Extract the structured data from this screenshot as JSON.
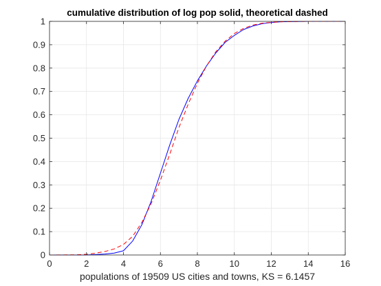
{
  "chart_data": {
    "type": "line",
    "title": "cumulative distribution of log pop solid, theoretical dashed",
    "xlabel": "populations of 19509 US cities and towns, KS = 6.1457",
    "ylabel": "",
    "xlim": [
      0,
      16
    ],
    "ylim": [
      0,
      1
    ],
    "x_ticks": [
      0,
      2,
      4,
      6,
      8,
      10,
      12,
      14,
      16
    ],
    "y_ticks": [
      0,
      0.1,
      0.2,
      0.3,
      0.4,
      0.5,
      0.6,
      0.7,
      0.8,
      0.9,
      1
    ],
    "x_tick_labels": [
      "0",
      "2",
      "4",
      "6",
      "8",
      "10",
      "12",
      "14",
      "16"
    ],
    "y_tick_labels": [
      "0",
      "0.1",
      "0.2",
      "0.3",
      "0.4",
      "0.5",
      "0.6",
      "0.7",
      "0.8",
      "0.9",
      "1"
    ],
    "grid": true,
    "series": [
      {
        "style": "solid",
        "color": "#0000ff",
        "x": [
          0,
          2.0,
          2.5,
          3.0,
          3.5,
          4.0,
          4.5,
          5.0,
          5.5,
          6.0,
          6.5,
          7.0,
          7.5,
          8.0,
          8.5,
          9.0,
          9.5,
          10.0,
          10.5,
          11.0,
          11.5,
          12.0,
          12.5,
          13.0,
          14.0,
          16.0
        ],
        "y": [
          0,
          0.0,
          0.002,
          0.004,
          0.008,
          0.018,
          0.06,
          0.13,
          0.23,
          0.35,
          0.47,
          0.58,
          0.67,
          0.745,
          0.81,
          0.865,
          0.91,
          0.94,
          0.965,
          0.98,
          0.99,
          0.995,
          0.998,
          0.999,
          1.0,
          1.0
        ]
      },
      {
        "style": "dashed",
        "color": "#ff0000",
        "x": [
          0,
          1.5,
          2.0,
          2.5,
          3.0,
          3.5,
          4.0,
          4.5,
          5.0,
          5.5,
          6.0,
          6.5,
          7.0,
          7.5,
          8.0,
          8.5,
          9.0,
          9.5,
          10.0,
          10.5,
          11.0,
          11.5,
          12.0,
          12.5,
          13.0,
          14.0,
          16.0
        ],
        "y": [
          0,
          0.001,
          0.003,
          0.008,
          0.015,
          0.026,
          0.045,
          0.08,
          0.14,
          0.22,
          0.32,
          0.43,
          0.545,
          0.645,
          0.735,
          0.81,
          0.87,
          0.915,
          0.948,
          0.97,
          0.984,
          0.992,
          0.996,
          0.998,
          0.999,
          1.0,
          1.0
        ]
      }
    ]
  }
}
